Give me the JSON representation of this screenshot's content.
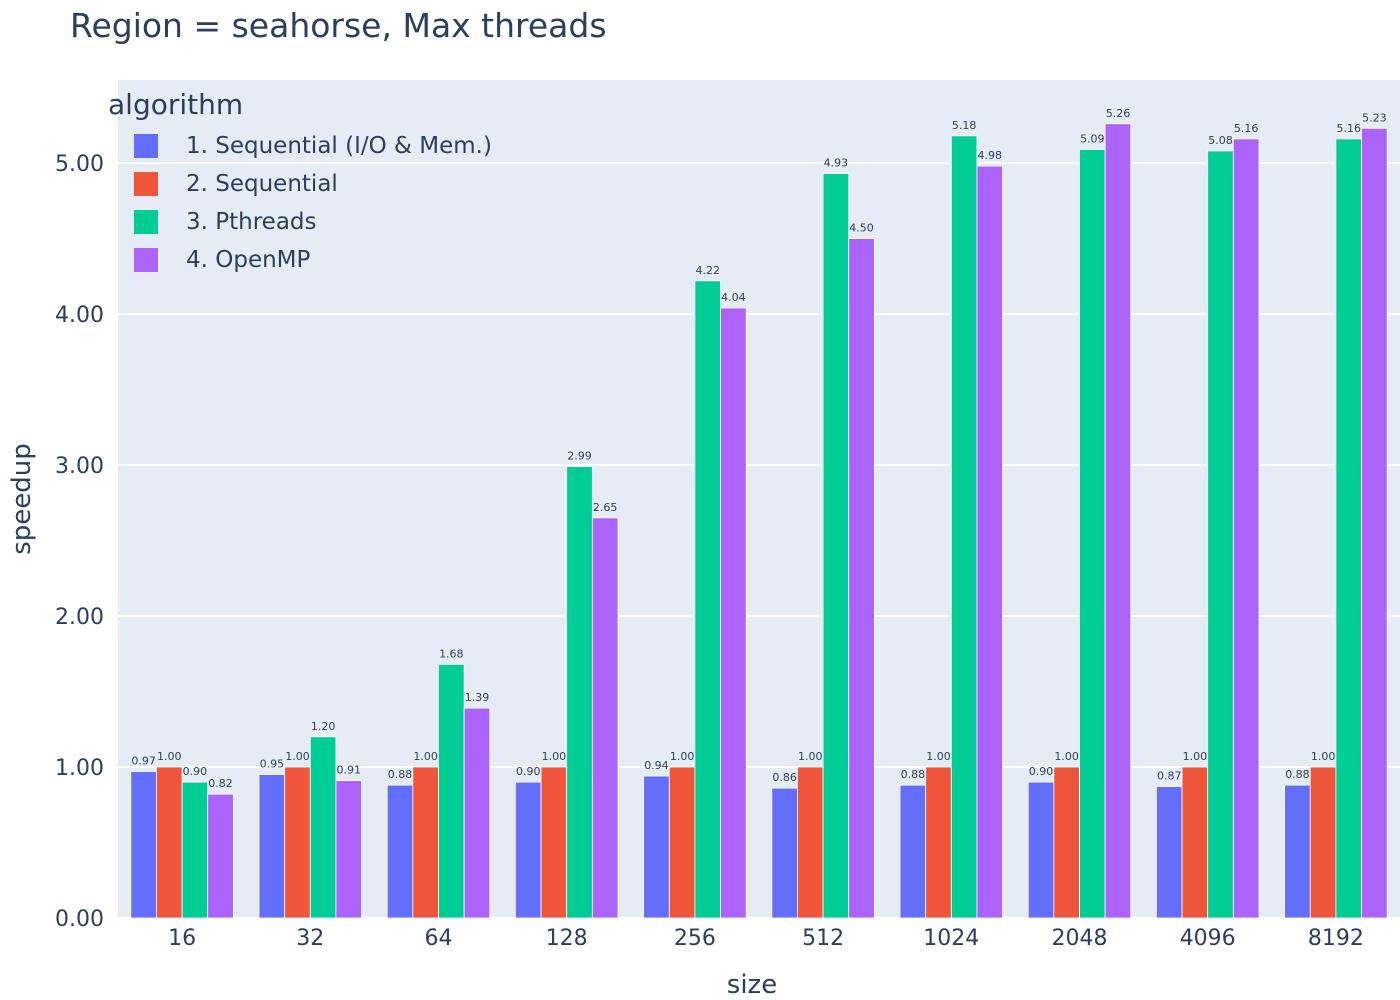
{
  "chart_data": {
    "type": "bar",
    "title": "Region = seahorse, Max threads",
    "xlabel": "size",
    "ylabel": "speedup",
    "ylim": [
      0,
      5.55
    ],
    "yticks": [
      "0.00",
      "1.00",
      "2.00",
      "3.00",
      "4.00",
      "5.00"
    ],
    "categories": [
      "16",
      "32",
      "64",
      "128",
      "256",
      "512",
      "1024",
      "2048",
      "4096",
      "8192"
    ],
    "legend_title": "algorithm",
    "legend_position": "top-left",
    "grid": true,
    "series": [
      {
        "name": "1. Sequential (I/O & Mem.)",
        "color": "#636efa",
        "values": [
          0.97,
          0.95,
          0.88,
          0.9,
          0.94,
          0.86,
          0.88,
          0.9,
          0.87,
          0.88
        ]
      },
      {
        "name": "2. Sequential",
        "color": "#ef553b",
        "values": [
          1.0,
          1.0,
          1.0,
          1.0,
          1.0,
          1.0,
          1.0,
          1.0,
          1.0,
          1.0
        ]
      },
      {
        "name": "3. Pthreads",
        "color": "#00cc96",
        "values": [
          0.9,
          1.2,
          1.68,
          2.99,
          4.22,
          4.93,
          5.18,
          5.09,
          5.08,
          5.16
        ]
      },
      {
        "name": "4. OpenMP",
        "color": "#ab63fa",
        "values": [
          0.82,
          0.91,
          1.39,
          2.65,
          4.04,
          4.5,
          4.98,
          5.26,
          5.16,
          5.23
        ]
      }
    ]
  }
}
